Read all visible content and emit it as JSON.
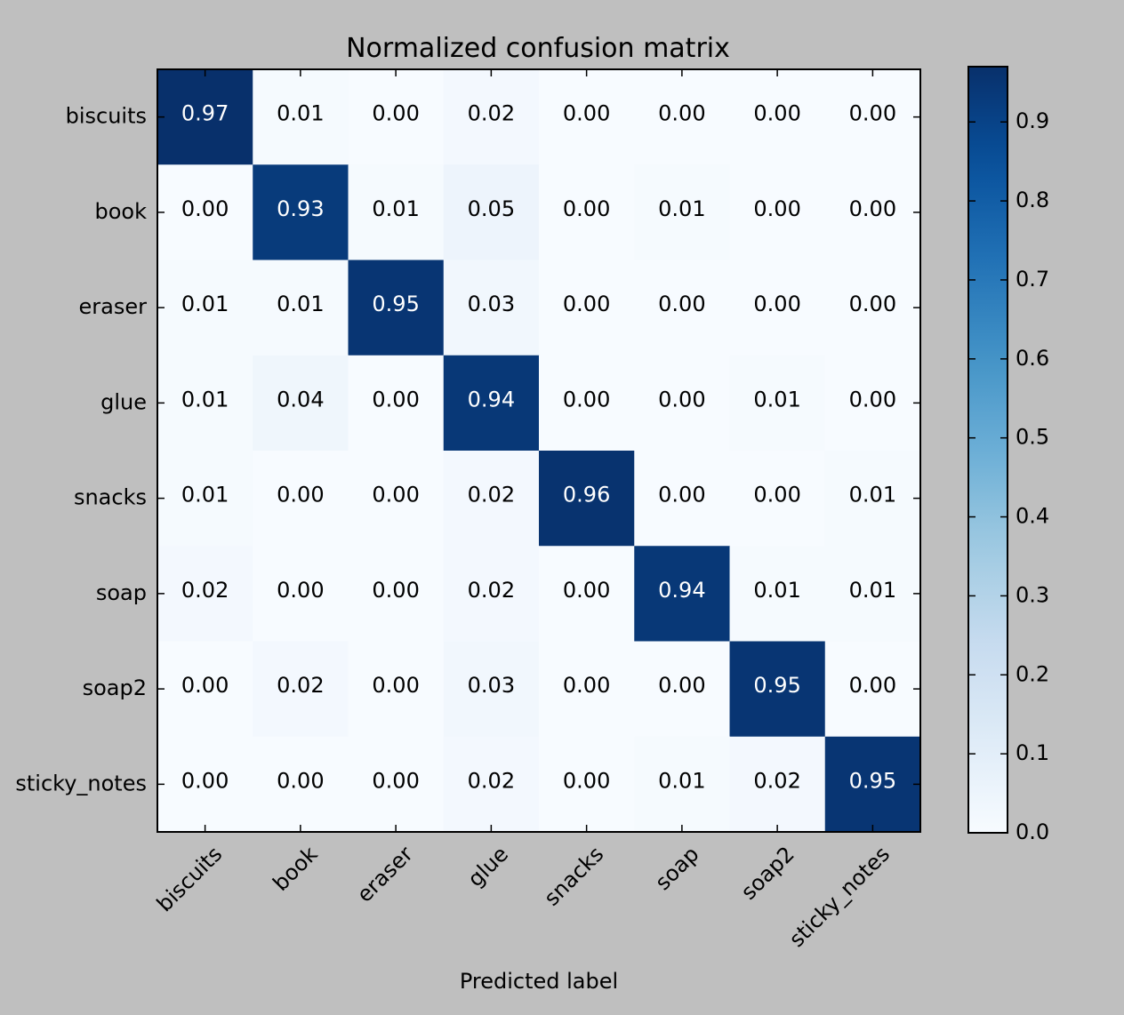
{
  "chart_data": {
    "type": "heatmap",
    "title": "Normalized confusion matrix",
    "xlabel": "Predicted label",
    "ylabel": "",
    "row_labels": [
      "biscuits",
      "book",
      "eraser",
      "glue",
      "snacks",
      "soap",
      "soap2",
      "sticky_notes"
    ],
    "col_labels": [
      "biscuits",
      "book",
      "eraser",
      "glue",
      "snacks",
      "soap",
      "soap2",
      "sticky_notes"
    ],
    "values": [
      [
        0.97,
        0.01,
        0.0,
        0.02,
        0.0,
        0.0,
        0.0,
        0.0
      ],
      [
        0.0,
        0.93,
        0.01,
        0.05,
        0.0,
        0.01,
        0.0,
        0.0
      ],
      [
        0.01,
        0.01,
        0.95,
        0.03,
        0.0,
        0.0,
        0.0,
        0.0
      ],
      [
        0.01,
        0.04,
        0.0,
        0.94,
        0.0,
        0.0,
        0.01,
        0.0
      ],
      [
        0.01,
        0.0,
        0.0,
        0.02,
        0.96,
        0.0,
        0.0,
        0.01
      ],
      [
        0.02,
        0.0,
        0.0,
        0.02,
        0.0,
        0.94,
        0.01,
        0.01
      ],
      [
        0.0,
        0.02,
        0.0,
        0.03,
        0.0,
        0.0,
        0.95,
        0.0
      ],
      [
        0.0,
        0.0,
        0.0,
        0.02,
        0.0,
        0.01,
        0.02,
        0.95
      ]
    ],
    "colormap": "Blues",
    "colorbar": {
      "range": [
        0.0,
        0.97
      ],
      "ticks": [
        0.0,
        0.1,
        0.2,
        0.3,
        0.4,
        0.5,
        0.6,
        0.7,
        0.8,
        0.9
      ],
      "tick_labels": [
        "0.0",
        "0.1",
        "0.2",
        "0.3",
        "0.4",
        "0.5",
        "0.6",
        "0.7",
        "0.8",
        "0.9"
      ]
    },
    "colors": {
      "background": "#bfbfbf",
      "text_dark": "#000000",
      "text_light": "#ffffff"
    },
    "grid": false
  }
}
